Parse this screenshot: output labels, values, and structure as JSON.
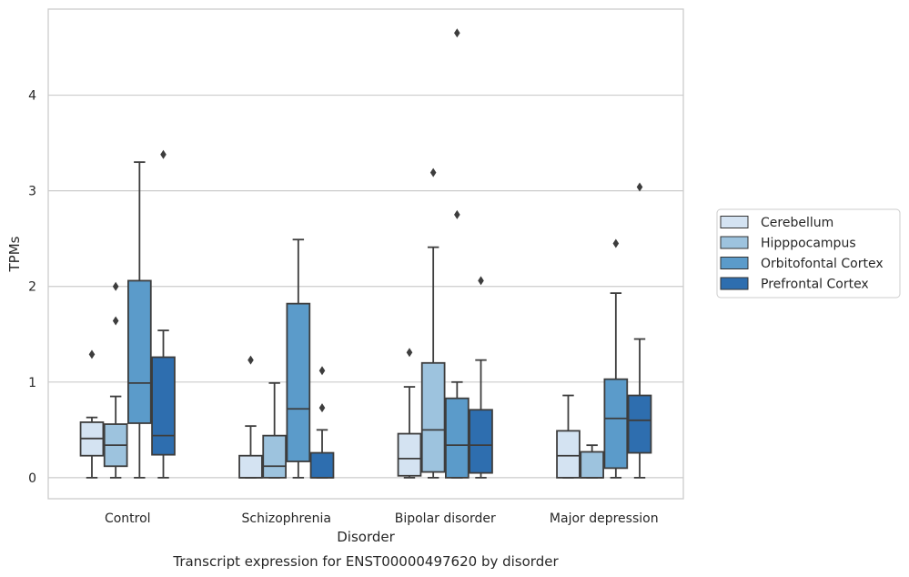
{
  "chart_data": {
    "type": "box",
    "title": "",
    "caption": "Transcript expression for ENST00000497620 by disorder",
    "xlabel": "Disorder",
    "ylabel": "TPMs",
    "ylim": [
      -0.22,
      4.9
    ],
    "yticks": [
      0,
      1,
      2,
      3,
      4
    ],
    "grid": "horizontal",
    "legend_position": "right",
    "categories": [
      "Control",
      "Schizophrenia",
      "Bipolar disorder",
      "Major depression"
    ],
    "series": [
      {
        "name": "Cerebellum",
        "color": "#d4e3f2",
        "boxes": [
          {
            "whislo": 0.0,
            "q1": 0.23,
            "med": 0.41,
            "q3": 0.58,
            "whishi": 0.63,
            "fliers": [
              1.29
            ]
          },
          {
            "whislo": 0.0,
            "q1": 0.0,
            "med": 0.0,
            "q3": 0.23,
            "whishi": 0.54,
            "fliers": [
              1.23
            ]
          },
          {
            "whislo": 0.0,
            "q1": 0.02,
            "med": 0.2,
            "q3": 0.46,
            "whishi": 0.95,
            "fliers": [
              1.31
            ]
          },
          {
            "whislo": 0.0,
            "q1": 0.0,
            "med": 0.23,
            "q3": 0.49,
            "whishi": 0.86,
            "fliers": []
          }
        ]
      },
      {
        "name": "Hipppocampus",
        "color": "#9dc3de",
        "boxes": [
          {
            "whislo": 0.0,
            "q1": 0.12,
            "med": 0.34,
            "q3": 0.56,
            "whishi": 0.85,
            "fliers": [
              1.64,
              2.0
            ]
          },
          {
            "whislo": 0.0,
            "q1": 0.0,
            "med": 0.12,
            "q3": 0.44,
            "whishi": 0.99,
            "fliers": []
          },
          {
            "whislo": 0.0,
            "q1": 0.06,
            "med": 0.5,
            "q3": 1.2,
            "whishi": 2.41,
            "fliers": [
              3.19
            ]
          },
          {
            "whislo": 0.0,
            "q1": 0.0,
            "med": 0.0,
            "q3": 0.27,
            "whishi": 0.34,
            "fliers": []
          }
        ]
      },
      {
        "name": "Orbitofontal Cortex",
        "color": "#5b9bca",
        "boxes": [
          {
            "whislo": 0.0,
            "q1": 0.57,
            "med": 0.99,
            "q3": 2.06,
            "whishi": 3.3,
            "fliers": []
          },
          {
            "whislo": 0.0,
            "q1": 0.17,
            "med": 0.72,
            "q3": 1.82,
            "whishi": 2.49,
            "fliers": []
          },
          {
            "whislo": 0.0,
            "q1": 0.0,
            "med": 0.34,
            "q3": 0.83,
            "whishi": 1.0,
            "fliers": [
              2.75,
              4.65
            ]
          },
          {
            "whislo": 0.0,
            "q1": 0.1,
            "med": 0.62,
            "q3": 1.03,
            "whishi": 1.93,
            "fliers": [
              2.45
            ]
          }
        ]
      },
      {
        "name": "Prefrontal Cortex",
        "color": "#2e6eaf",
        "boxes": [
          {
            "whislo": 0.0,
            "q1": 0.24,
            "med": 0.44,
            "q3": 1.26,
            "whishi": 1.54,
            "fliers": [
              3.38
            ]
          },
          {
            "whislo": 0.0,
            "q1": 0.0,
            "med": 0.0,
            "q3": 0.26,
            "whishi": 0.5,
            "fliers": [
              0.73,
              1.12
            ]
          },
          {
            "whislo": 0.0,
            "q1": 0.05,
            "med": 0.34,
            "q3": 0.71,
            "whishi": 1.23,
            "fliers": [
              2.06
            ]
          },
          {
            "whislo": 0.0,
            "q1": 0.26,
            "med": 0.6,
            "q3": 0.86,
            "whishi": 1.45,
            "fliers": [
              3.04
            ]
          }
        ]
      }
    ]
  }
}
